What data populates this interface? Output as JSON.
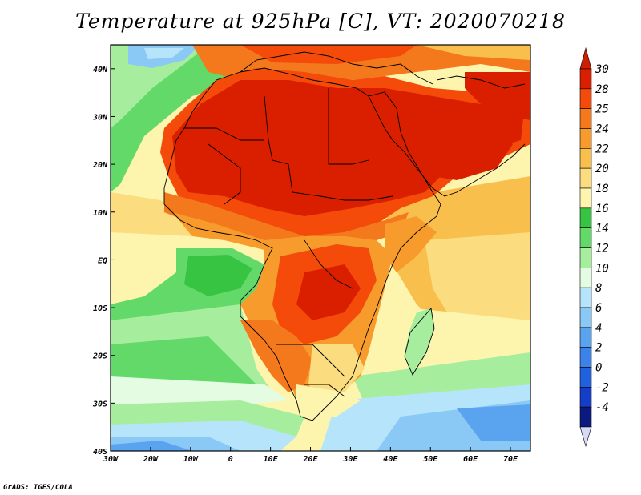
{
  "title": "Temperature at 925hPa [C], VT: 2020070218",
  "footer": "GrADS: IGES/COLA",
  "map": {
    "lat_ticks": [
      {
        "value": 40,
        "label": "40N"
      },
      {
        "value": 30,
        "label": "30N"
      },
      {
        "value": 20,
        "label": "20N"
      },
      {
        "value": 10,
        "label": "10N"
      },
      {
        "value": 0,
        "label": "EQ"
      },
      {
        "value": -10,
        "label": "10S"
      },
      {
        "value": -20,
        "label": "20S"
      },
      {
        "value": -30,
        "label": "30S"
      },
      {
        "value": -40,
        "label": "40S"
      }
    ],
    "lon_ticks": [
      {
        "value": -30,
        "label": "30W"
      },
      {
        "value": -20,
        "label": "20W"
      },
      {
        "value": -10,
        "label": "10W"
      },
      {
        "value": 0,
        "label": "0"
      },
      {
        "value": 10,
        "label": "10E"
      },
      {
        "value": 20,
        "label": "20E"
      },
      {
        "value": 30,
        "label": "30E"
      },
      {
        "value": 40,
        "label": "40E"
      },
      {
        "value": 50,
        "label": "50E"
      },
      {
        "value": 60,
        "label": "60E"
      },
      {
        "value": 70,
        "label": "70E"
      }
    ],
    "lon_range": [
      -30,
      75
    ],
    "lat_range": [
      -40,
      45
    ]
  },
  "colorbar": {
    "levels": [
      {
        "label": "30",
        "color": "#d91f00"
      },
      {
        "label": "28",
        "color": "#f44a0a"
      },
      {
        "label": "25",
        "color": "#f4781c"
      },
      {
        "label": "24",
        "color": "#f79c2c"
      },
      {
        "label": "22",
        "color": "#f8bf4c"
      },
      {
        "label": "20",
        "color": "#fbdc7e"
      },
      {
        "label": "18",
        "color": "#fdf5ae"
      },
      {
        "label": "16",
        "color": "#38c443"
      },
      {
        "label": "14",
        "color": "#63d96a"
      },
      {
        "label": "12",
        "color": "#a6ee9e"
      },
      {
        "label": "10",
        "color": "#e4fde2"
      },
      {
        "label": "8",
        "color": "#b6e5fb"
      },
      {
        "label": "6",
        "color": "#8ac8f6"
      },
      {
        "label": "4",
        "color": "#5aa3ef"
      },
      {
        "label": "2",
        "color": "#3c82e8"
      },
      {
        "label": "0",
        "color": "#2062de"
      },
      {
        "label": "-2",
        "color": "#143ec8"
      },
      {
        "label": "-4",
        "color": "#0c1a80"
      }
    ],
    "top_cap_color": "#cf1d00",
    "bottom_cap_color": "#d8d8f8"
  },
  "legend_colors": {
    "hot": "#d91f00",
    "warm": "#f4781c",
    "mild": "#fbdc7e",
    "green": "#63d96a",
    "cool": "#8ac8f6"
  }
}
